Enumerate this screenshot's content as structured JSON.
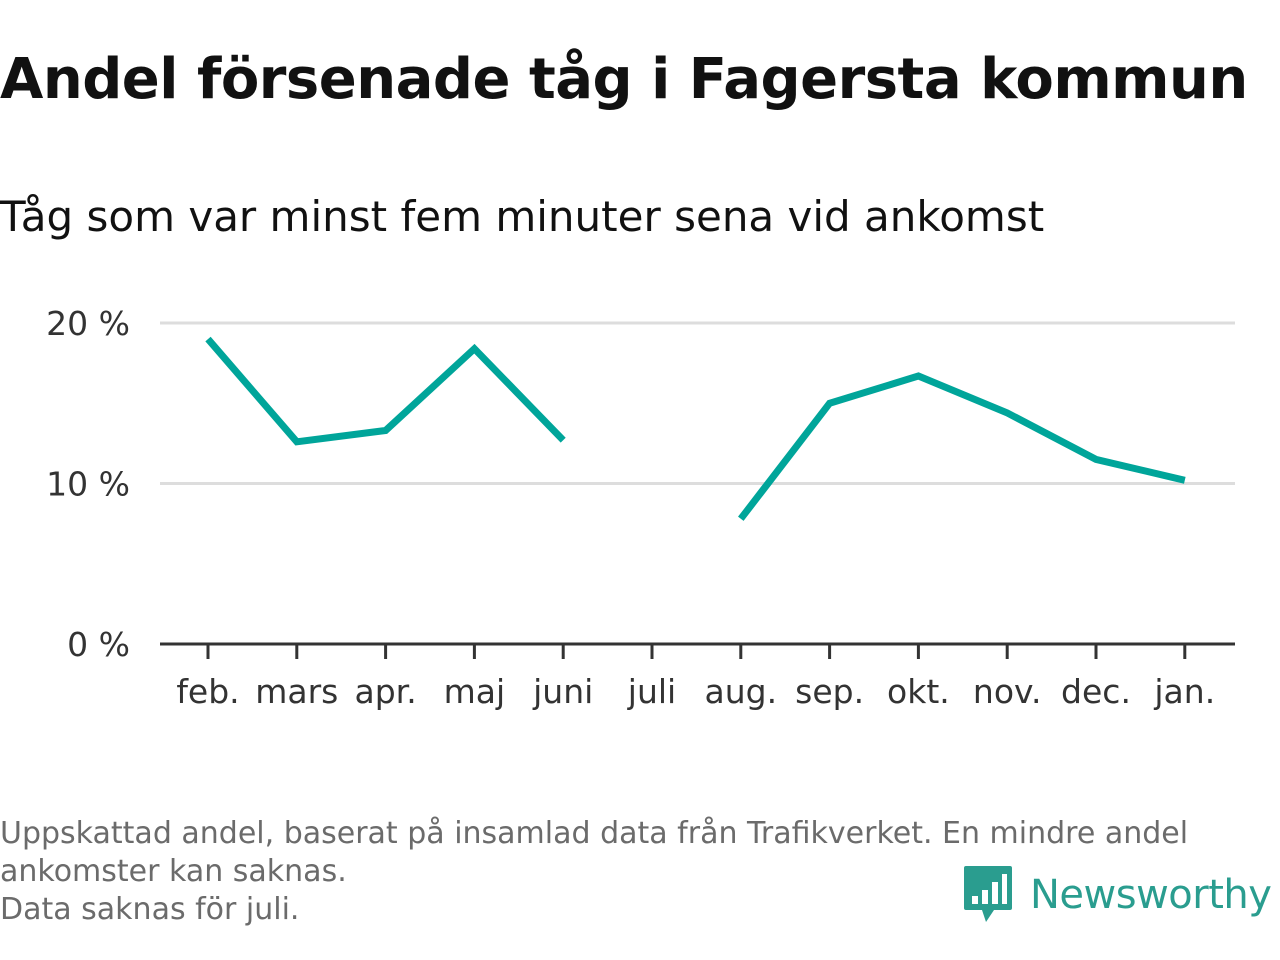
{
  "chart_data": {
    "type": "line",
    "title": "Andel försenade tåg i Fagersta kommun",
    "subtitle": "Tåg som var minst fem minuter sena vid ankomst",
    "categories": [
      "feb.",
      "mars",
      "apr.",
      "maj",
      "juni",
      "juli",
      "aug.",
      "sep.",
      "okt.",
      "nov.",
      "dec.",
      "jan."
    ],
    "series": [
      {
        "values": [
          19.0,
          12.6,
          13.3,
          18.4,
          12.7,
          null,
          7.8,
          15.0,
          16.7,
          14.4,
          11.5,
          10.2
        ],
        "color": "#00a59a"
      }
    ],
    "ylim": [
      0,
      20
    ],
    "yticks": [
      0,
      10,
      20
    ],
    "ytick_labels": [
      "0 %",
      "10 %",
      "20 %"
    ],
    "grid": true
  },
  "footer": {
    "line1": "Uppskattad andel, baserat på insamlad data från Trafikverket. En mindre andel",
    "line2": "ankomster kan saknas.",
    "line3": "Data saknas för juli."
  },
  "logo": {
    "text": "Newsworthy",
    "icon": "bar-chart-speech-bubble-icon",
    "color": "#2a9d8f"
  }
}
